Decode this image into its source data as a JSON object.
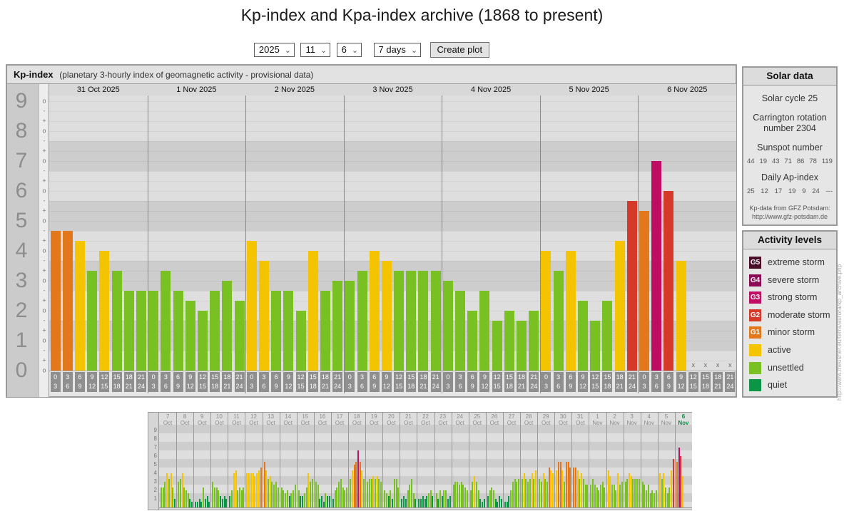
{
  "page": {
    "title": "Kp-index and Kpa-index archive (1868 to present)"
  },
  "controls": {
    "year": "2025",
    "month": "11",
    "day": "6",
    "range": "7 days",
    "create": "Create plot"
  },
  "palette": {
    "quiet": "#0c9447",
    "unsettled": "#79c122",
    "active": "#f5c400",
    "g1": "#e2771b",
    "g2": "#d5392a",
    "g3": "#bf0d63",
    "g4": "#8d0a57",
    "g5": "#4a0d28"
  },
  "thresholds": [
    [
      1.5,
      "quiet"
    ],
    [
      3.5,
      "unsettled"
    ],
    [
      4.5,
      "active"
    ],
    [
      5.5,
      "g1"
    ],
    [
      6.5,
      "g2"
    ],
    [
      7.5,
      "g3"
    ],
    [
      8.5,
      "g4"
    ],
    [
      99,
      "g5"
    ]
  ],
  "main_header": {
    "title": "Kp-index",
    "subtitle": "(planetary 3-hourly index of geomagnetic activity - provisional data)"
  },
  "chart_data": [
    {
      "type": "bar",
      "name": "kp-index-7day",
      "title": "Kp-index",
      "ylabel": "Kp",
      "ylim": [
        0,
        9
      ],
      "y_ticks": [
        0,
        1,
        2,
        3,
        4,
        5,
        6,
        7,
        8,
        9
      ],
      "sub_tick_glyphs": {
        "exact": "o",
        "plus": "+",
        "minus": "-"
      },
      "slot_labels": [
        [
          "0",
          "3"
        ],
        [
          "3",
          "6"
        ],
        [
          "6",
          "9"
        ],
        [
          "9",
          "12"
        ],
        [
          "12",
          "15"
        ],
        [
          "15",
          "18"
        ],
        [
          "18",
          "21"
        ],
        [
          "21",
          "24"
        ]
      ],
      "no_data_marker": "x",
      "days": [
        {
          "label": "31 Oct 2025",
          "kp": [
            "5-",
            "5-",
            "4+",
            "3+",
            "4o",
            "3+",
            "3-",
            "3-"
          ],
          "values": [
            4.67,
            4.67,
            4.33,
            3.33,
            4,
            3.33,
            2.67,
            2.67
          ]
        },
        {
          "label": "1 Nov 2025",
          "kp": [
            "3-",
            "3+",
            "3-",
            "2+",
            "2o",
            "3-",
            "3o",
            "2+"
          ],
          "values": [
            2.67,
            3.33,
            2.67,
            2.33,
            2,
            2.67,
            3,
            2.33
          ]
        },
        {
          "label": "2 Nov 2025",
          "kp": [
            "4+",
            "4-",
            "3-",
            "3-",
            "2o",
            "4o",
            "3-",
            "3o"
          ],
          "values": [
            4.33,
            3.67,
            2.67,
            2.67,
            2,
            4,
            2.67,
            3
          ]
        },
        {
          "label": "3 Nov 2025",
          "kp": [
            "3o",
            "3+",
            "4o",
            "4-",
            "3+",
            "3+",
            "3+",
            "3+"
          ],
          "values": [
            3,
            3.33,
            4,
            3.67,
            3.33,
            3.33,
            3.33,
            3.33
          ]
        },
        {
          "label": "4 Nov 2025",
          "kp": [
            "3o",
            "3-",
            "2o",
            "3-",
            "2-",
            "2o",
            "2-",
            "2o"
          ],
          "values": [
            3,
            2.67,
            2,
            2.67,
            1.67,
            2,
            1.67,
            2
          ]
        },
        {
          "label": "5 Nov 2025",
          "kp": [
            "4o",
            "3+",
            "4o",
            "2+",
            "2-",
            "2+",
            "4+",
            "6-"
          ],
          "values": [
            4,
            3.33,
            4,
            2.33,
            1.67,
            2.33,
            4.33,
            5.67
          ]
        },
        {
          "label": "6 Nov 2025",
          "kp": [
            "5+",
            "7o",
            "6o",
            "4-",
            "x",
            "x",
            "x",
            "x"
          ],
          "values": [
            5.33,
            7,
            6,
            3.67,
            null,
            null,
            null,
            null
          ]
        }
      ]
    },
    {
      "type": "bar",
      "name": "kp-index-30day-overview",
      "ylim": [
        0,
        9
      ],
      "y_ticks": [
        1,
        2,
        3,
        4,
        5,
        6,
        7,
        8,
        9
      ],
      "days": [
        {
          "day": "7",
          "month": "Oct",
          "values": [
            2.3,
            2.3,
            3,
            4,
            3.3,
            4,
            2.3,
            1
          ]
        },
        {
          "day": "8",
          "month": "Oct",
          "values": [
            3,
            3.3,
            4,
            2.3,
            2,
            1.7,
            1,
            0.7
          ]
        },
        {
          "day": "9",
          "month": "Oct",
          "values": [
            0.7,
            0.7,
            1,
            0.7,
            2.3,
            1,
            1.3,
            0.7
          ]
        },
        {
          "day": "10",
          "month": "Oct",
          "values": [
            3,
            2.3,
            2.3,
            2,
            1.3,
            1,
            1.3,
            1
          ]
        },
        {
          "day": "11",
          "month": "Oct",
          "values": [
            1.3,
            2,
            4,
            4.3,
            2,
            2.3,
            2,
            2.3
          ]
        },
        {
          "day": "12",
          "month": "Oct",
          "values": [
            4,
            4,
            4,
            4,
            3.7,
            4,
            4.3,
            4.7
          ]
        },
        {
          "day": "13",
          "month": "Oct",
          "values": [
            5.3,
            4.3,
            3.3,
            3.7,
            3,
            2.7,
            3,
            2.3
          ]
        },
        {
          "day": "14",
          "month": "Oct",
          "values": [
            2.3,
            2,
            1.7,
            2,
            1.3,
            1.7,
            2,
            2.7
          ]
        },
        {
          "day": "15",
          "month": "Oct",
          "values": [
            2,
            1.3,
            1.3,
            1.7,
            2.3,
            4,
            3,
            3.3
          ]
        },
        {
          "day": "16",
          "month": "Oct",
          "values": [
            3,
            2.7,
            1,
            1.3,
            0.7,
            1.7,
            1.3,
            1.3
          ]
        },
        {
          "day": "17",
          "month": "Oct",
          "values": [
            1,
            2,
            2.3,
            3,
            3.3,
            2.3,
            2,
            2.3
          ]
        },
        {
          "day": "18",
          "month": "Oct",
          "values": [
            3.3,
            4.3,
            5,
            5.3,
            6.7,
            5.3,
            4.3,
            3.3
          ]
        },
        {
          "day": "19",
          "month": "Oct",
          "values": [
            3,
            3.3,
            3.3,
            3.7,
            3.3,
            3.7,
            3.3,
            3
          ]
        },
        {
          "day": "20",
          "month": "Oct",
          "values": [
            2,
            1.7,
            1.3,
            2,
            1,
            3.3,
            3.3,
            2.3
          ]
        },
        {
          "day": "21",
          "month": "Oct",
          "values": [
            1,
            1.3,
            1,
            2,
            2.7,
            3.3,
            1.7,
            1
          ]
        },
        {
          "day": "22",
          "month": "Oct",
          "values": [
            1,
            1,
            1.3,
            1,
            1.3,
            1.7,
            2,
            1.3
          ]
        },
        {
          "day": "23",
          "month": "Oct",
          "values": [
            1.7,
            1,
            2,
            1.3,
            2,
            2,
            1,
            1.3
          ]
        },
        {
          "day": "24",
          "month": "Oct",
          "values": [
            2.7,
            3,
            3,
            2.7,
            3,
            2.7,
            2.3,
            2
          ]
        },
        {
          "day": "25",
          "month": "Oct",
          "values": [
            2,
            3,
            3.7,
            3,
            2,
            1,
            0.7,
            1
          ]
        },
        {
          "day": "26",
          "month": "Oct",
          "values": [
            1.3,
            2,
            2.3,
            2,
            1,
            0.7,
            1.3,
            1
          ]
        },
        {
          "day": "27",
          "month": "Oct",
          "values": [
            0.7,
            0.7,
            1.3,
            2,
            3,
            3.3,
            3,
            3.3
          ]
        },
        {
          "day": "28",
          "month": "Oct",
          "values": [
            3.3,
            4,
            3.3,
            3,
            3.3,
            4,
            3.3,
            4.3
          ]
        },
        {
          "day": "29",
          "month": "Oct",
          "values": [
            3.3,
            3,
            4,
            3.3,
            3,
            4.7,
            4.3,
            4
          ]
        },
        {
          "day": "30",
          "month": "Oct",
          "values": [
            4.3,
            5.3,
            5.3,
            4.3,
            3,
            5.3,
            5.3,
            4.7
          ]
        },
        {
          "day": "31",
          "month": "Oct",
          "values": [
            4.67,
            4.67,
            4.33,
            3.33,
            4,
            3.33,
            2.67,
            2.67
          ]
        },
        {
          "day": "1",
          "month": "Nov",
          "values": [
            2.67,
            3.33,
            2.67,
            2.33,
            2,
            2.67,
            3,
            2.33
          ]
        },
        {
          "day": "2",
          "month": "Nov",
          "values": [
            4.33,
            3.67,
            2.67,
            2.67,
            2,
            4,
            2.67,
            3
          ]
        },
        {
          "day": "3",
          "month": "Nov",
          "values": [
            3,
            3.33,
            4,
            3.67,
            3.33,
            3.33,
            3.33,
            3.33
          ]
        },
        {
          "day": "4",
          "month": "Nov",
          "values": [
            3,
            2.67,
            2,
            2.67,
            1.67,
            2,
            1.67,
            2
          ]
        },
        {
          "day": "5",
          "month": "Nov",
          "values": [
            4,
            3.33,
            4,
            2.33,
            1.67,
            2.33,
            4.33,
            5.67
          ]
        },
        {
          "day": "6",
          "month": "Nov",
          "values": [
            5.33,
            7,
            6,
            3.67,
            null,
            null,
            null,
            null
          ],
          "current": true
        }
      ]
    }
  ],
  "solar_panel": {
    "title": "Solar data",
    "cycle": "Solar cycle 25",
    "carrington_line1": "Carrington rotation",
    "carrington_line2": "number 2304",
    "sunspot_title": "Sunspot number",
    "sunspot_values": [
      "44",
      "19",
      "43",
      "71",
      "86",
      "78",
      "119"
    ],
    "ap_title": "Daily Ap-index",
    "ap_values": [
      "25",
      "12",
      "17",
      "19",
      "9",
      "24",
      "---"
    ],
    "source_line1": "Kp-data from GFZ Potsdam:",
    "source_line2": "http://www.gfz-potsdam.de"
  },
  "activity_panel": {
    "title": "Activity levels",
    "items": [
      {
        "badge": "G5",
        "label": "extreme storm",
        "color_key": "g5"
      },
      {
        "badge": "G4",
        "label": "severe storm",
        "color_key": "g4"
      },
      {
        "badge": "G3",
        "label": "strong storm",
        "color_key": "g3"
      },
      {
        "badge": "G2",
        "label": "moderate storm",
        "color_key": "g2"
      },
      {
        "badge": "G1",
        "label": "minor storm",
        "color_key": "g1"
      },
      {
        "badge": "",
        "label": "active",
        "color_key": "active"
      },
      {
        "badge": "",
        "label": "unsettled",
        "color_key": "unsettled"
      },
      {
        "badge": "",
        "label": "quiet",
        "color_key": "quiet"
      }
    ]
  },
  "watermark": "http://www.theusner.eu/terra/aurora/kp_archive.php"
}
